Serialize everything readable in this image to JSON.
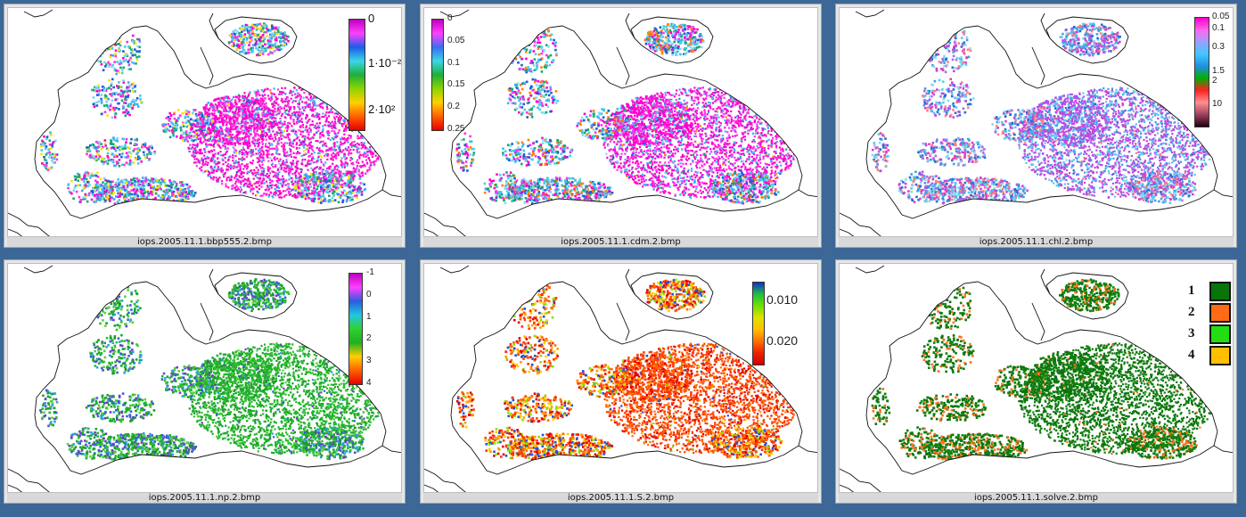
{
  "panels": [
    {
      "caption": "iops.2005.11.1.bbp555.2.bmp",
      "palette": [
        "#ff00cc",
        "#ff33dd",
        "#3fa9f5",
        "#45c8ea",
        "#1e5bd6",
        "#7fd2f0",
        "#18a86a",
        "#ffe000"
      ],
      "legend": {
        "type": "colorbar",
        "gradient": [
          "#c000c0",
          "#ff40ff",
          "#1a5ee8",
          "#3bd6e8",
          "#1fae3a",
          "#8cd400",
          "#ffd000",
          "#ff6000",
          "#e60000"
        ],
        "ticks": [
          {
            "label": "0",
            "pos": 0.0
          },
          {
            "label": "1·10⁻²",
            "pos": 0.4
          },
          {
            "label": "2·10²",
            "pos": 0.82
          }
        ]
      }
    },
    {
      "caption": "iops.2005.11.1.cdm.2.bmp",
      "palette": [
        "#ff00cc",
        "#ff33ee",
        "#39b8f0",
        "#45cfe8",
        "#1e5bd6",
        "#7fdcf0",
        "#18a86a",
        "#ff8000"
      ],
      "legend": {
        "type": "colorbar",
        "gradient": [
          "#c000c0",
          "#ff40ff",
          "#3a6ff0",
          "#3bd6e8",
          "#1fae3a",
          "#8cd400",
          "#ffd000",
          "#ff6000",
          "#e60000"
        ],
        "ticks": [
          {
            "label": "0",
            "pos": 0.0
          },
          {
            "label": "0.05",
            "pos": 0.2
          },
          {
            "label": "0.1",
            "pos": 0.4
          },
          {
            "label": "0.15",
            "pos": 0.6
          },
          {
            "label": "0.2",
            "pos": 0.8
          },
          {
            "label": "0.25",
            "pos": 1.0
          }
        ]
      }
    },
    {
      "caption": "iops.2005.11.1.chl.2.bmp",
      "palette": [
        "#c048e0",
        "#59c8f0",
        "#3f9ee8",
        "#88d8f0",
        "#e040c0",
        "#2070d8",
        "#a070e0",
        "#ff8080"
      ],
      "legend": {
        "type": "colorbar",
        "gradient": [
          "#ff00c8",
          "#ff66ee",
          "#9aa0ff",
          "#40c8ff",
          "#2090e0",
          "#00b000",
          "#ff2020",
          "#ff9090",
          "#a04060",
          "#200010"
        ],
        "ticks": [
          {
            "label": "0.05",
            "pos": 0.0
          },
          {
            "label": "0.1",
            "pos": 0.11
          },
          {
            "label": "0.3",
            "pos": 0.28
          },
          {
            "label": "1.5",
            "pos": 0.5
          },
          {
            "label": "2",
            "pos": 0.59
          },
          {
            "label": "10",
            "pos": 0.8
          }
        ]
      }
    },
    {
      "caption": "iops.2005.11.1.np.2.bmp",
      "palette": [
        "#22b22a",
        "#30c030",
        "#1a9a2a",
        "#3a5ed8",
        "#6a40c8",
        "#5ad23a",
        "#18a63a",
        "#2fa0e0"
      ],
      "legend": {
        "type": "colorbar",
        "gradient": [
          "#c000c0",
          "#ff40ff",
          "#2a5ce0",
          "#20c8e0",
          "#30d030",
          "#20b020",
          "#ffd000",
          "#ff6000",
          "#e60000"
        ],
        "ticks": [
          {
            "label": "-1",
            "pos": 0.0
          },
          {
            "label": "0",
            "pos": 0.2
          },
          {
            "label": "1",
            "pos": 0.4
          },
          {
            "label": "2",
            "pos": 0.6
          },
          {
            "label": "3",
            "pos": 0.8
          },
          {
            "label": "4",
            "pos": 1.0
          }
        ]
      }
    },
    {
      "caption": "iops.2005.11.1.S.2.bmp",
      "palette": [
        "#ff4000",
        "#ff6a00",
        "#e00000",
        "#ff9a00",
        "#ffcc00",
        "#ff3000",
        "#8adf00",
        "#2050d8"
      ],
      "legend": {
        "type": "colorbar",
        "gradient": [
          "#1030d0",
          "#20c040",
          "#70e000",
          "#e0e000",
          "#ffc000",
          "#ff7000",
          "#f02000",
          "#d00000"
        ],
        "ticks": [
          {
            "label": "0.010",
            "pos": 0.22
          },
          {
            "label": "0.020",
            "pos": 0.72
          }
        ]
      }
    },
    {
      "caption": "iops.2005.11.1.solve.2.bmp",
      "palette": [
        "#0b7a0b",
        "#127e12",
        "#0a700a",
        "#ff6a14",
        "#0f850f",
        "#107a10",
        "#0b7a0b",
        "#ff7a20"
      ],
      "legend": {
        "type": "classes",
        "classes": [
          {
            "label": "1",
            "color": "#087508"
          },
          {
            "label": "2",
            "color": "#ff6a14"
          },
          {
            "label": "3",
            "color": "#22dd11"
          },
          {
            "label": "4",
            "color": "#ffbf00"
          }
        ]
      }
    }
  ]
}
